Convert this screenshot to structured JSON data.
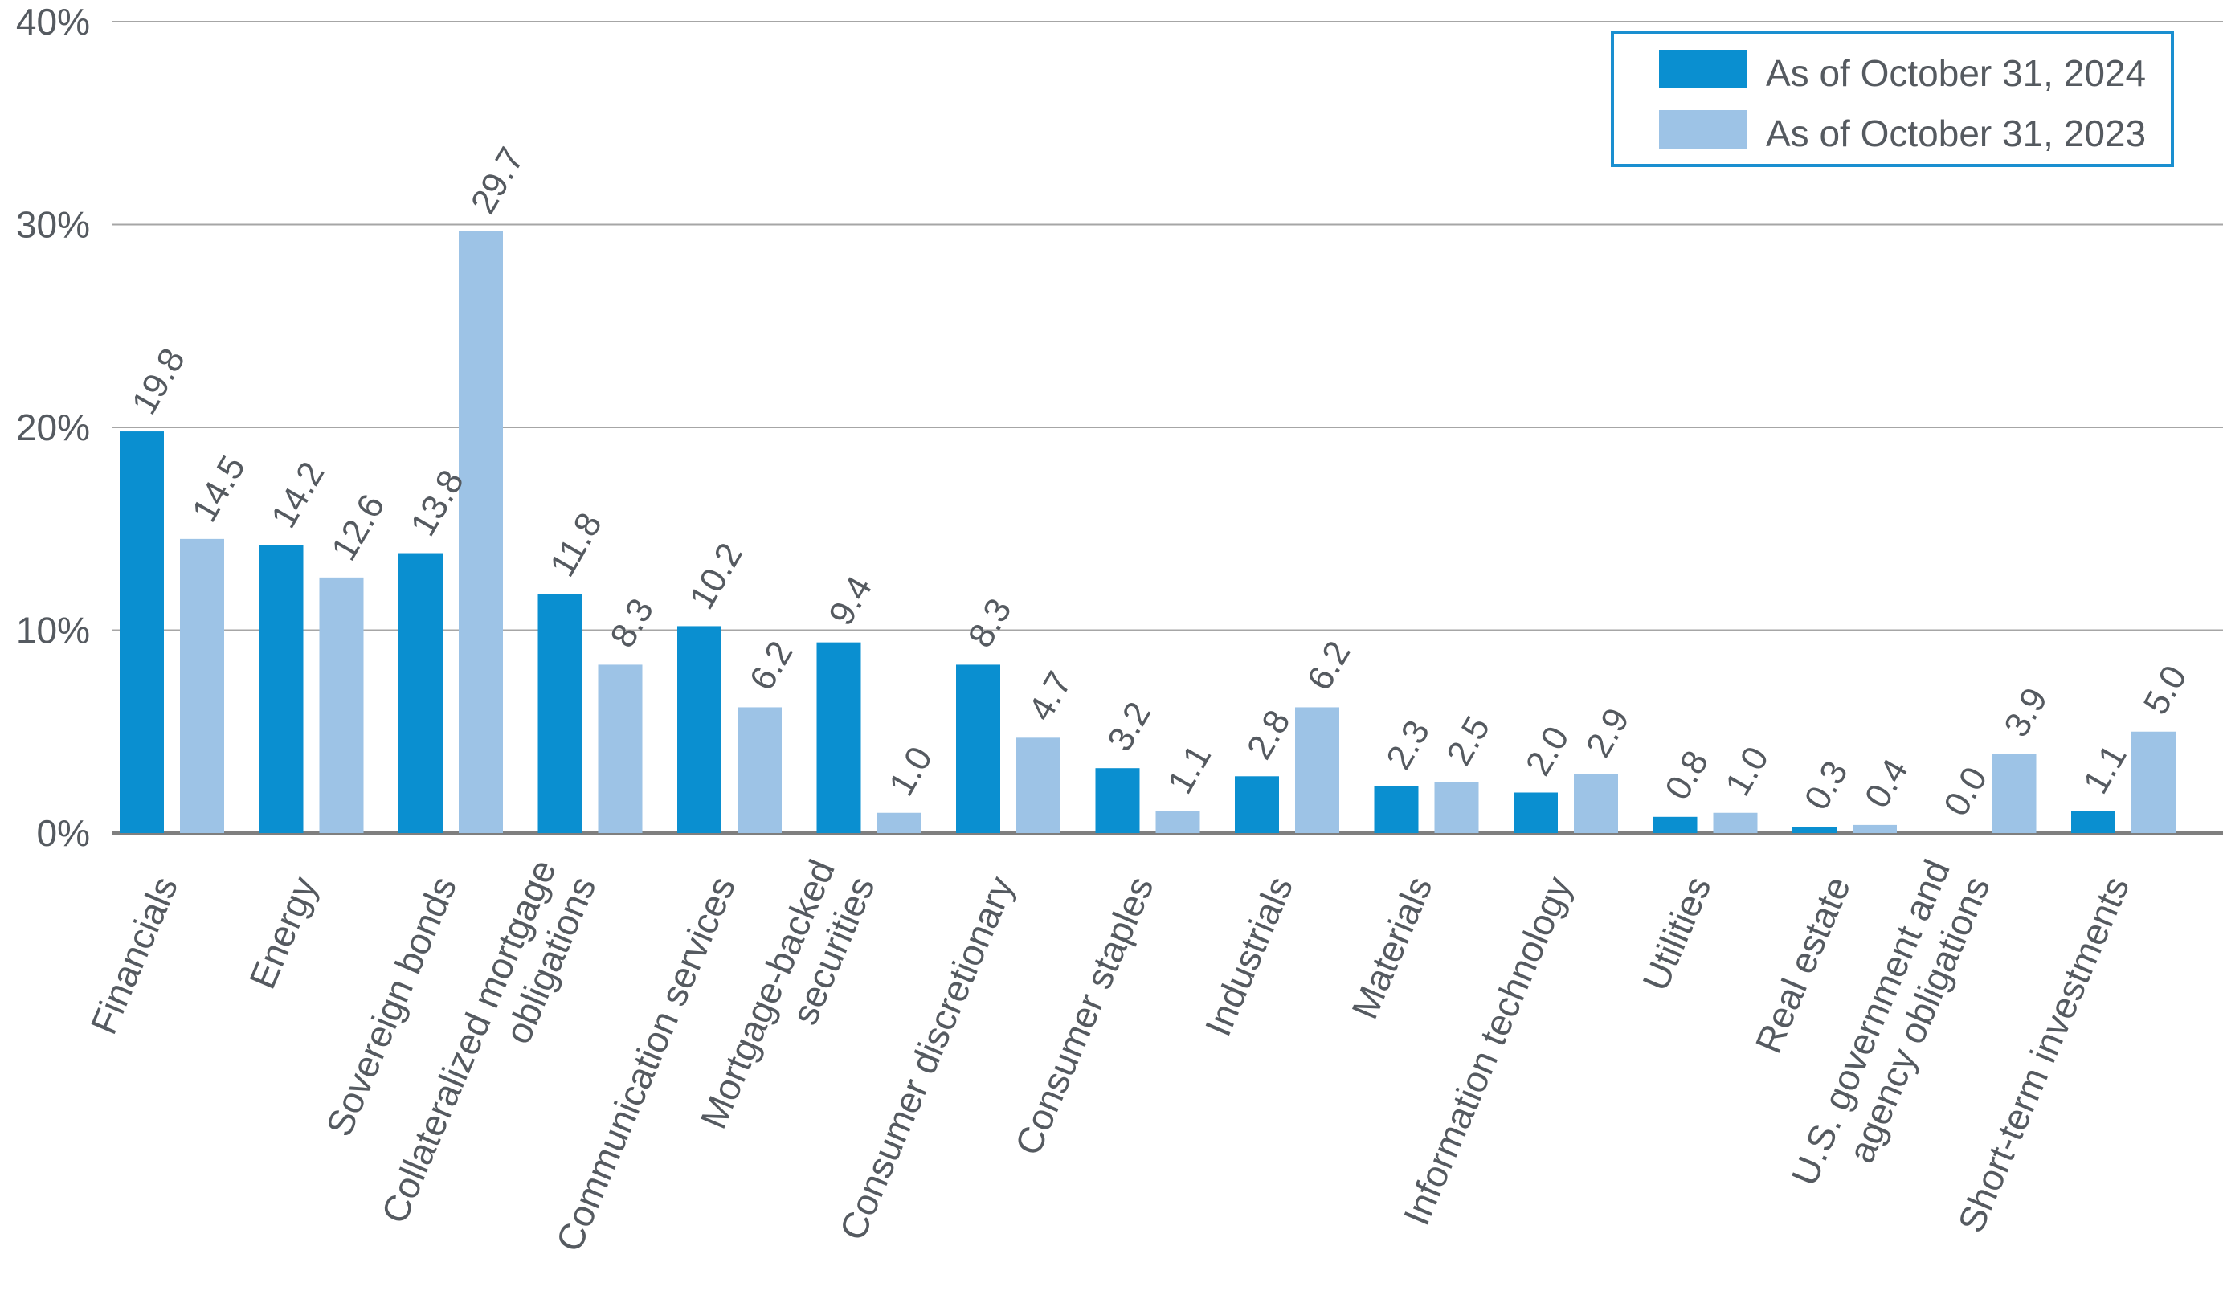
{
  "chart_data": {
    "type": "bar",
    "title": "",
    "xlabel": "",
    "ylabel": "",
    "ylim": [
      0,
      40
    ],
    "yticks": [
      0,
      10,
      20,
      30,
      40
    ],
    "ytick_labels": [
      "0%",
      "10%",
      "20%",
      "30%",
      "40%"
    ],
    "grid": "horizontal",
    "legend_position": "top-right",
    "categories": [
      [
        "Financials"
      ],
      [
        "Energy"
      ],
      [
        "Sovereign bonds"
      ],
      [
        "Collateralized mortgage",
        "obligations"
      ],
      [
        "Communication services"
      ],
      [
        "Mortgage-backed",
        "securities"
      ],
      [
        "Consumer discretionary"
      ],
      [
        "Consumer staples"
      ],
      [
        "Industrials"
      ],
      [
        "Materials"
      ],
      [
        "Information technology"
      ],
      [
        "Utilities"
      ],
      [
        "Real estate"
      ],
      [
        "U.S. government and",
        "agency obligations"
      ],
      [
        "Short-term investments"
      ]
    ],
    "series": [
      {
        "name": "As of October 31, 2024",
        "color": "#0a8fd0",
        "values": [
          19.8,
          14.2,
          13.8,
          11.8,
          10.2,
          9.4,
          8.3,
          3.2,
          2.8,
          2.3,
          2.0,
          0.8,
          0.3,
          0.0,
          1.1
        ],
        "labels": [
          "19.8",
          "14.2",
          "13.8",
          "11.8",
          "10.2",
          "9.4",
          "8.3",
          "3.2",
          "2.8",
          "2.3",
          "2.0",
          "0.8",
          "0.3",
          "0.0",
          "1.1"
        ]
      },
      {
        "name": "As of October 31, 2023",
        "color": "#9dc3e6",
        "values": [
          14.5,
          12.6,
          29.7,
          8.3,
          6.2,
          1.0,
          4.7,
          1.1,
          6.2,
          2.5,
          2.9,
          1.0,
          0.4,
          3.9,
          5.0
        ],
        "labels": [
          "14.5",
          "12.6",
          "29.7",
          "8.3",
          "6.2",
          "1.0",
          "4.7",
          "1.1",
          "6.2",
          "2.5",
          "2.9",
          "1.0",
          "0.4",
          "3.9",
          "5.0"
        ]
      }
    ]
  },
  "legend": {
    "border_color": "#1a8fd0"
  },
  "colors": {
    "grid": "#a6a6a6",
    "axis": "#7f7f7f",
    "text": "#555a60"
  }
}
